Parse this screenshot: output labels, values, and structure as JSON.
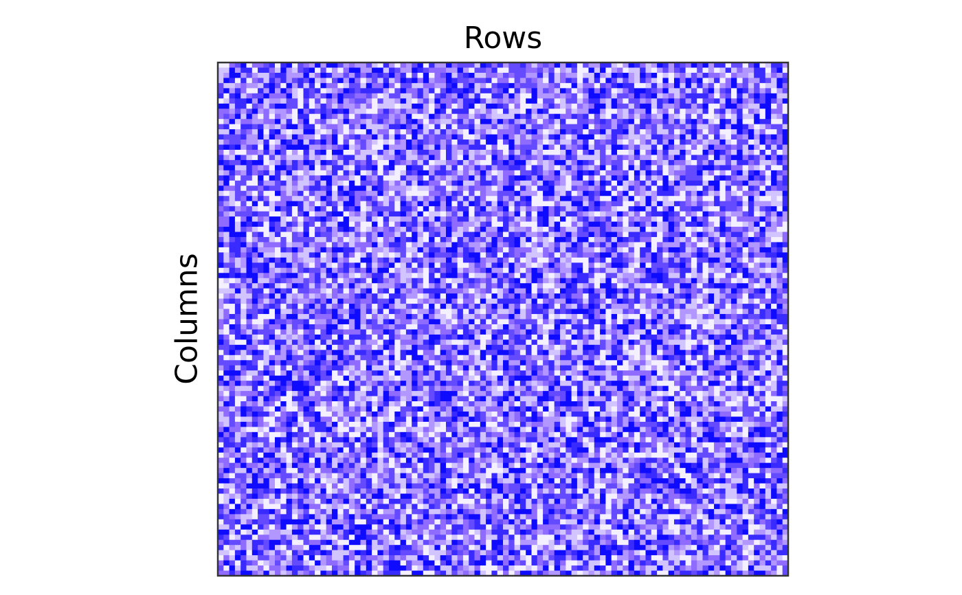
{
  "chart_data": {
    "type": "heatmap",
    "title": "Rows",
    "xlabel": "",
    "ylabel": "Columns",
    "n_rows": 100,
    "n_cols": 100,
    "value_range": [
      0,
      1
    ],
    "colormap": {
      "low": "#ffffff",
      "mid": "#8f6bff",
      "high": "#0000ff"
    },
    "value_levels": [
      0.05,
      0.2,
      0.35,
      0.5,
      0.65,
      0.8,
      0.95
    ],
    "grid": false,
    "ticks_shown": false,
    "frame_color": "#333333",
    "random_seed": 12345
  }
}
